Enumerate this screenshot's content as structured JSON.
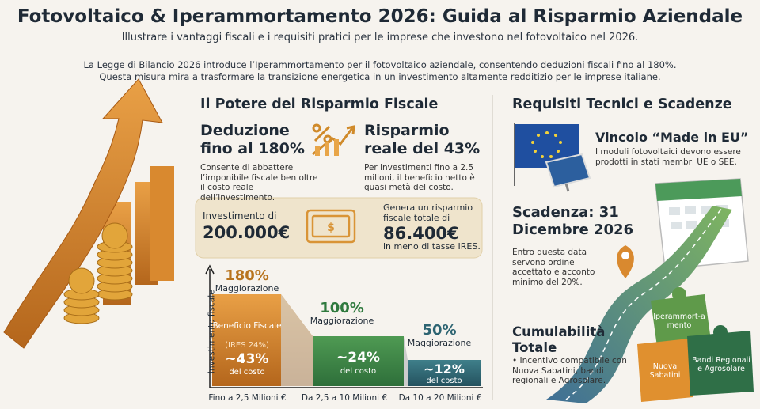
{
  "header": {
    "title": "Fotovoltaico & Iperammortamento 2026: Guida al Risparmio Aziendale",
    "subtitle": "Illustrare i vantaggi fiscali e i requisiti pratici per le imprese che investono nel fotovoltaico nel 2026."
  },
  "intro": [
    "La Legge di Bilancio 2026 introduce l’Iperammortamento per il fotovoltaico aziendale, consentendo deduzioni fiscali fino al 180%.",
    "Questa misura mira a trasformare la transizione energetica in un investimento altamente redditizio per le imprese italiane."
  ],
  "savings": {
    "title": "Il Potere del Risparmio Fiscale",
    "deduction": {
      "heading": "Deduzione fino al 180%",
      "text": "Consente di abbattere l’imponibile fiscale ben oltre il costo reale dell’investimento."
    },
    "real_saving": {
      "heading": "Risparmio reale del 43%",
      "text": "Per investimenti fino a 2.5 milioni, il beneficio netto è quasi metà del costo."
    },
    "example": {
      "label": "Investimento di",
      "amount": "200.000€",
      "note": "Genera un risparmio fiscale totale di",
      "saving": "86.400€",
      "note_after": "in meno di tasse IRES."
    }
  },
  "tiers_chart": {
    "axis_label": "Investimento fiscale",
    "tiers": [
      {
        "rate": "180%",
        "rate_label": "Maggiorazione",
        "benefit": "Beneficio Fiscale",
        "benefit_note": "(IRES 24%)",
        "saving": "~43%",
        "saving_label": "del costo",
        "range": "Fino a 2,5 Milioni €"
      },
      {
        "rate": "100%",
        "rate_label": "Maggiorazione",
        "saving": "~24%",
        "saving_label": "del costo",
        "range": "Da 2,5 a 10 Milioni €"
      },
      {
        "rate": "50%",
        "rate_label": "Maggiorazione",
        "saving": "~12%",
        "saving_label": "del costo",
        "range": "Da 10 a 20 Milioni €"
      }
    ]
  },
  "requirements": {
    "title": "Requisiti Tecnici e Scadenze",
    "made_in_eu": {
      "heading": "Vincolo “Made in EU”",
      "text": "I moduli fotovoltaici devono essere prodotti in stati membri UE o SEE."
    },
    "deadline": {
      "heading": "Scadenza: 31 Dicembre 2026",
      "text": "Entro questa data servono ordine accettato e acconto minimo del 20%."
    },
    "cumulability": {
      "heading": "Cumulabilità Totale",
      "text": "• Incentivo compatibile con Nuova Sabatini, bandi regionali e Agrosolare.",
      "pieces": [
        "Iperammort-amento",
        "Nuova Sabatini",
        "Bandi Regionali e Agrosolare"
      ]
    }
  }
}
